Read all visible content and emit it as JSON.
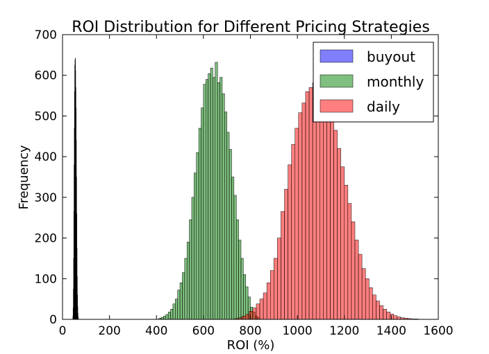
{
  "chart_data": {
    "type": "histogram",
    "title": "ROI Distribution for Different Pricing Strategies",
    "xlabel": "ROI (%)",
    "ylabel": "Frequency",
    "xlim": [
      0,
      1600
    ],
    "ylim": [
      0,
      700
    ],
    "xticks": [
      "0",
      "200",
      "400",
      "600",
      "800",
      "1000",
      "1200",
      "1400",
      "1600"
    ],
    "yticks": [
      "0",
      "100",
      "200",
      "300",
      "400",
      "500",
      "600",
      "700"
    ],
    "grid": false,
    "legend_position": "top-right",
    "series": [
      {
        "name": "buyout",
        "color": "#0000ff",
        "alpha": 0.5,
        "bin_width": 1.0,
        "x": [
          44,
          45,
          46,
          47,
          48,
          49,
          50,
          51,
          52,
          53,
          54,
          55,
          56,
          57,
          58,
          59,
          60,
          61,
          62,
          63,
          64,
          65,
          66,
          67
        ],
        "values": [
          8,
          28,
          75,
          150,
          265,
          380,
          470,
          560,
          625,
          638,
          642,
          612,
          570,
          520,
          440,
          350,
          260,
          175,
          105,
          60,
          32,
          15,
          6,
          2
        ]
      },
      {
        "name": "monthly",
        "color": "#008000",
        "alpha": 0.5,
        "bin_width": 10,
        "x": [
          410,
          420,
          430,
          440,
          450,
          460,
          470,
          480,
          490,
          500,
          510,
          520,
          530,
          540,
          550,
          560,
          570,
          580,
          590,
          600,
          610,
          620,
          630,
          640,
          650,
          660,
          670,
          680,
          690,
          700,
          710,
          720,
          730,
          740,
          750,
          760,
          770,
          780,
          790,
          800,
          810,
          820,
          830
        ],
        "values": [
          3,
          5,
          8,
          12,
          18,
          25,
          38,
          50,
          72,
          90,
          115,
          150,
          190,
          245,
          300,
          360,
          410,
          470,
          520,
          578,
          590,
          604,
          618,
          595,
          632,
          582,
          595,
          555,
          510,
          460,
          418,
          350,
          305,
          245,
          195,
          150,
          110,
          80,
          55,
          30,
          18,
          8,
          4
        ]
      },
      {
        "name": "daily",
        "color": "#ff0000",
        "alpha": 0.5,
        "bin_width": 15,
        "x": [
          735,
          750,
          765,
          780,
          795,
          810,
          825,
          840,
          855,
          870,
          885,
          900,
          915,
          930,
          945,
          960,
          975,
          990,
          1005,
          1020,
          1035,
          1050,
          1065,
          1080,
          1095,
          1110,
          1125,
          1140,
          1155,
          1170,
          1185,
          1200,
          1215,
          1230,
          1245,
          1260,
          1275,
          1290,
          1305,
          1320,
          1335,
          1350,
          1365,
          1380,
          1395,
          1410,
          1425,
          1440,
          1455,
          1470,
          1485,
          1500
        ],
        "values": [
          2,
          4,
          8,
          12,
          20,
          28,
          38,
          50,
          65,
          90,
          120,
          150,
          200,
          265,
          320,
          380,
          430,
          470,
          508,
          532,
          560,
          570,
          582,
          585,
          575,
          560,
          535,
          500,
          465,
          420,
          375,
          330,
          285,
          240,
          195,
          160,
          125,
          100,
          78,
          60,
          45,
          34,
          25,
          18,
          13,
          9,
          6,
          4,
          3,
          2,
          1,
          1
        ]
      }
    ]
  }
}
